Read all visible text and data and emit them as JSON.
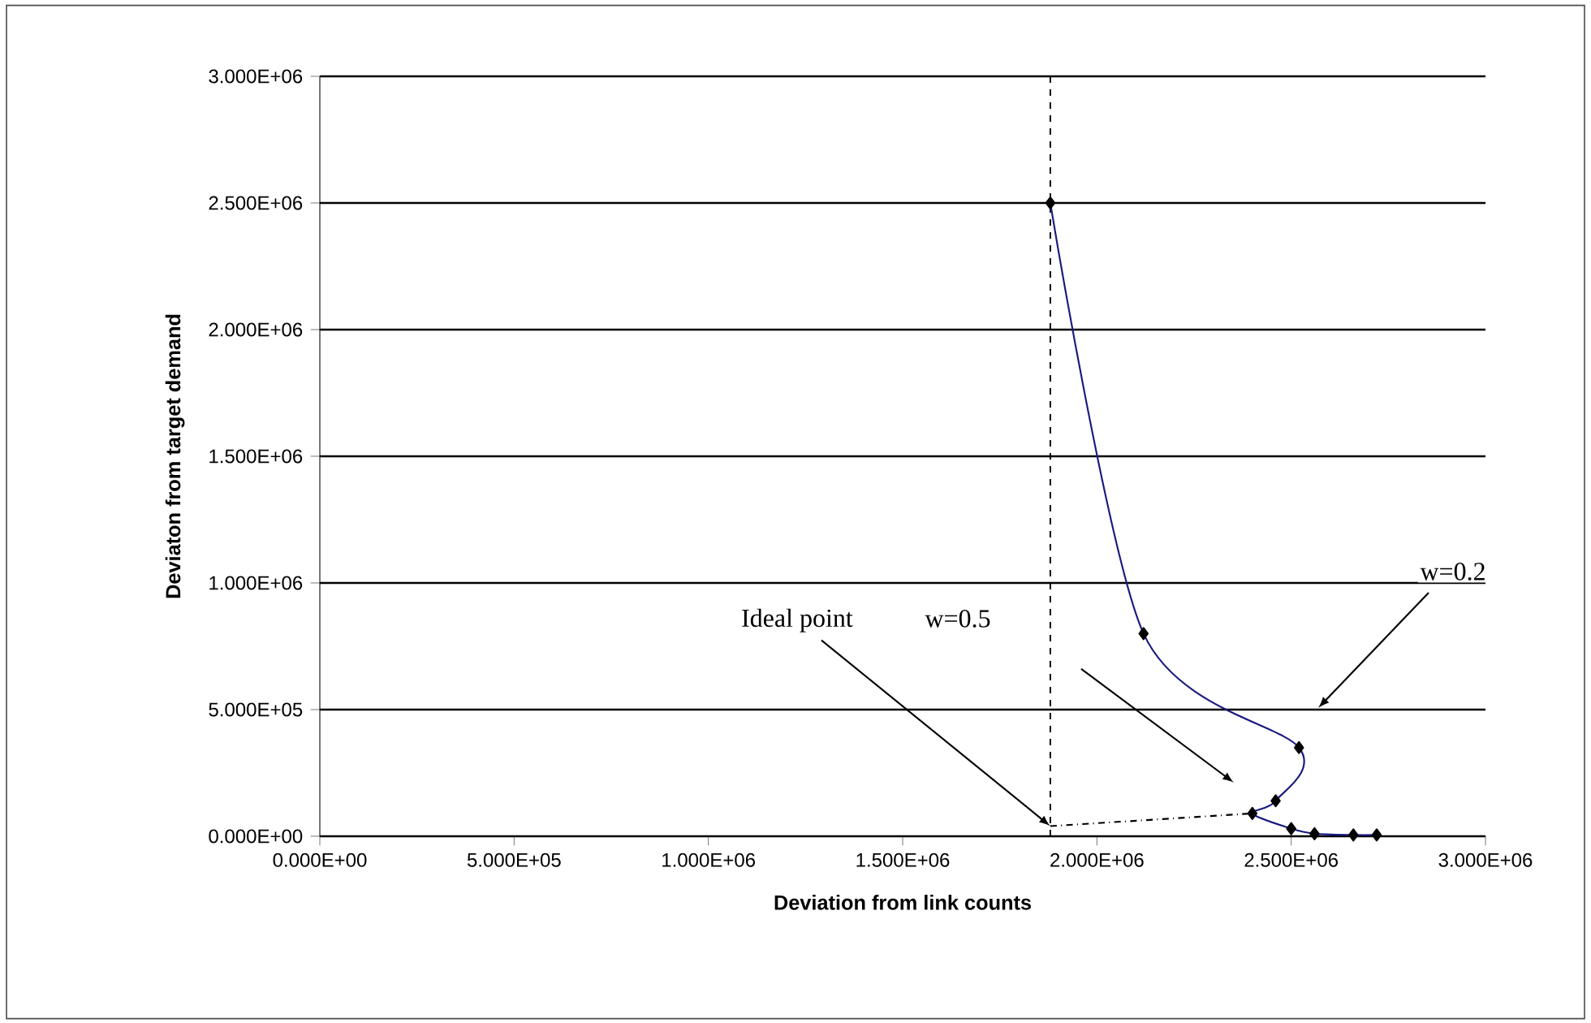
{
  "chart_data": {
    "type": "line",
    "xlabel": "Deviation from link counts",
    "ylabel": "Deviaton from target demand",
    "xlim": [
      0,
      3000000
    ],
    "ylim": [
      0,
      3000000
    ],
    "xticks": [
      {
        "value": 0,
        "label": "0.000E+00"
      },
      {
        "value": 500000,
        "label": "5.000E+05"
      },
      {
        "value": 1000000,
        "label": "1.000E+06"
      },
      {
        "value": 1500000,
        "label": "1.500E+06"
      },
      {
        "value": 2000000,
        "label": "2.000E+06"
      },
      {
        "value": 2500000,
        "label": "2.500E+06"
      },
      {
        "value": 3000000,
        "label": "3.000E+06"
      }
    ],
    "yticks": [
      {
        "value": 0,
        "label": "0.000E+00"
      },
      {
        "value": 500000,
        "label": "5.000E+05"
      },
      {
        "value": 1000000,
        "label": "1.000E+06"
      },
      {
        "value": 1500000,
        "label": "1.500E+06"
      },
      {
        "value": 2000000,
        "label": "2.000E+06"
      },
      {
        "value": 2500000,
        "label": "2.500E+06"
      },
      {
        "value": 3000000,
        "label": "3.000E+06"
      }
    ],
    "grid": "y",
    "series": [
      {
        "color": "#1a1a80",
        "marker": "diamond",
        "line_style": "solid",
        "x": [
          1880000,
          2120000,
          2520000,
          2460000,
          2400000,
          2500000,
          2560000,
          2660000,
          2720000
        ],
        "values": [
          2500000,
          800000,
          350000,
          140000,
          90000,
          30000,
          10000,
          5000,
          5000
        ]
      },
      {
        "color": "#000000",
        "line_style": "dashdot",
        "x": [
          1880000,
          2400000
        ],
        "values": [
          40000,
          90000
        ]
      }
    ],
    "ref_lines": [
      {
        "axis": "x",
        "value": 1880000,
        "color": "#000000",
        "line_style": "dashed"
      }
    ],
    "annotations": [
      {
        "text": "Ideal point",
        "x": 1880000,
        "y": 40000
      },
      "w=0.5",
      "w=0.2"
    ]
  }
}
